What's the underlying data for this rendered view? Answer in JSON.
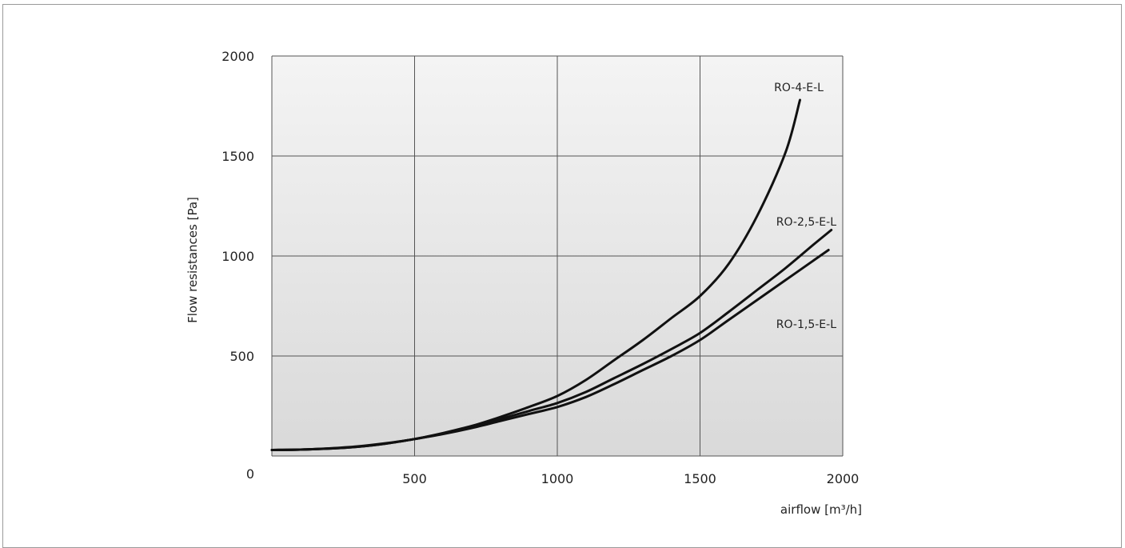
{
  "chart_data": {
    "type": "line",
    "xlabel": "airflow [m³/h]",
    "ylabel": "Flow resistances [Pa]",
    "xlim": [
      0,
      2000
    ],
    "ylim": [
      0,
      2000
    ],
    "xticks": [
      500,
      1000,
      1500,
      2000
    ],
    "yticks": [
      0,
      500,
      1000,
      1500,
      2000
    ],
    "grid": true,
    "colors": {
      "line": "#111111",
      "grid": "#555555",
      "plot_bg_top": "#f4f4f4",
      "plot_bg_bottom": "#d9d9d9"
    },
    "series": [
      {
        "name": "RO-4-E-L",
        "x": [
          0,
          100,
          200,
          300,
          400,
          500,
          600,
          700,
          800,
          900,
          1000,
          1100,
          1200,
          1300,
          1400,
          1500,
          1600,
          1700,
          1800,
          1850
        ],
        "y": [
          30,
          32,
          38,
          48,
          64,
          85,
          115,
          150,
          195,
          245,
          300,
          380,
          480,
          580,
          690,
          800,
          960,
          1200,
          1520,
          1780
        ]
      },
      {
        "name": "RO-2,5-E-L",
        "x": [
          0,
          100,
          200,
          300,
          400,
          500,
          600,
          700,
          800,
          900,
          1000,
          1100,
          1200,
          1300,
          1400,
          1500,
          1600,
          1700,
          1800,
          1900,
          1960
        ],
        "y": [
          30,
          32,
          37,
          46,
          62,
          85,
          112,
          145,
          185,
          225,
          265,
          320,
          390,
          460,
          535,
          615,
          720,
          830,
          940,
          1060,
          1130
        ]
      },
      {
        "name": "RO-1,5-E-L",
        "x": [
          0,
          100,
          200,
          300,
          400,
          500,
          600,
          700,
          800,
          900,
          1000,
          1100,
          1200,
          1300,
          1400,
          1500,
          1600,
          1700,
          1800,
          1900,
          1950
        ],
        "y": [
          30,
          32,
          37,
          46,
          62,
          85,
          110,
          140,
          175,
          210,
          245,
          295,
          360,
          430,
          500,
          580,
          680,
          780,
          880,
          980,
          1030
        ]
      }
    ]
  }
}
